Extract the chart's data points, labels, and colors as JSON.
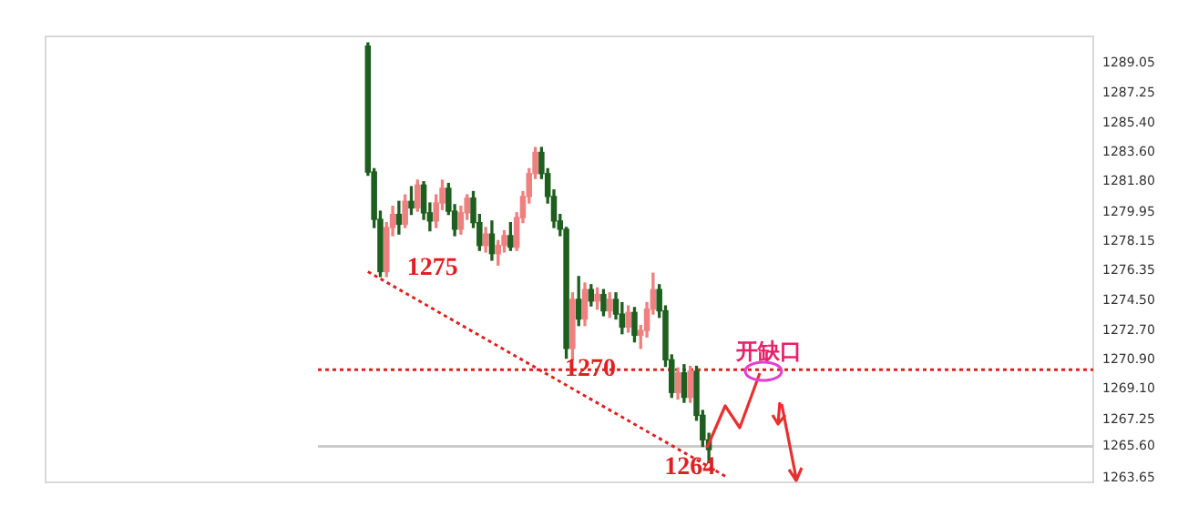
{
  "chart_data": {
    "type": "candlestick",
    "categories": [
      null,
      null,
      null,
      null,
      null,
      null,
      null,
      null,
      null,
      null,
      null,
      null,
      null,
      null,
      null,
      null,
      null,
      null,
      null,
      null,
      null,
      null,
      null,
      null,
      null,
      null,
      null,
      null,
      null,
      null,
      null,
      null,
      null,
      null,
      null,
      null,
      null,
      null,
      null,
      null,
      null,
      null,
      null,
      null,
      null,
      null,
      null,
      null,
      null,
      null,
      null,
      null,
      null,
      null,
      null,
      null,
      null,
      null,
      null,
      null,
      null,
      null,
      null,
      null,
      null,
      null,
      null,
      null,
      null,
      null,
      null,
      null,
      null,
      null,
      null,
      null,
      null,
      null,
      null,
      null,
      null,
      null,
      null,
      null,
      null,
      null,
      null,
      null,
      null,
      null,
      null,
      null,
      null,
      null,
      null,
      null,
      null,
      null,
      null,
      null,
      null,
      null,
      null,
      null,
      null,
      null,
      null,
      null,
      null,
      null,
      null,
      null,
      null,
      null,
      null,
      null,
      null,
      null,
      null,
      null,
      null,
      null,
      null,
      null,
      null,
      null,
      null,
      null,
      null,
      null,
      null,
      null,
      null,
      null,
      null,
      null,
      null,
      null,
      null,
      null,
      null,
      null,
      null,
      null,
      null,
      null,
      null,
      null,
      null,
      null,
      null,
      null,
      null,
      null,
      null,
      null,
      null,
      null,
      null,
      null,
      null,
      null,
      null,
      null,
      null,
      null,
      null,
      null,
      null,
      null
    ],
    "ohlc": [
      null,
      null,
      null,
      null,
      null,
      null,
      null,
      null,
      null,
      null,
      null,
      null,
      null,
      null,
      null,
      null,
      null,
      null,
      null,
      null,
      null,
      null,
      null,
      null,
      null,
      null,
      null,
      null,
      null,
      null,
      null,
      null,
      null,
      null,
      null,
      null,
      null,
      null,
      null,
      null,
      null,
      null,
      null,
      null,
      null,
      null,
      null,
      null,
      null,
      null,
      null,
      null,
      [
        1290.1,
        1290.3,
        1282.2,
        1282.4
      ],
      [
        1282.4,
        1282.6,
        1279.0,
        1279.5
      ],
      [
        1279.5,
        1280.0,
        1276.0,
        1276.3
      ],
      [
        1276.3,
        1279.3,
        1276.0,
        1279.0
      ],
      [
        1279.0,
        1280.3,
        1278.5,
        1279.8
      ],
      [
        1279.8,
        1280.6,
        1278.6,
        1279.2
      ],
      [
        1279.2,
        1281.0,
        1279.0,
        1280.6
      ],
      [
        1280.6,
        1281.5,
        1279.8,
        1280.2
      ],
      [
        1280.2,
        1281.9,
        1280.0,
        1281.6
      ],
      [
        1281.6,
        1281.8,
        1279.5,
        1279.9
      ],
      [
        1279.9,
        1280.5,
        1278.8,
        1279.4
      ],
      [
        1279.4,
        1281.0,
        1279.0,
        1280.5
      ],
      [
        1280.5,
        1281.9,
        1280.1,
        1281.4
      ],
      [
        1281.4,
        1281.7,
        1279.8,
        1280.0
      ],
      [
        1280.0,
        1280.4,
        1278.5,
        1278.9
      ],
      [
        1278.9,
        1280.3,
        1278.6,
        1279.9
      ],
      [
        1279.9,
        1281.0,
        1279.5,
        1280.8
      ],
      [
        1280.8,
        1281.2,
        1279.0,
        1279.3
      ],
      [
        1279.3,
        1279.8,
        1277.6,
        1277.9
      ],
      [
        1277.9,
        1279.0,
        1277.5,
        1278.6
      ],
      [
        1278.6,
        1279.4,
        1277.0,
        1277.4
      ],
      [
        1277.4,
        1278.2,
        1276.7,
        1277.9
      ],
      [
        1277.9,
        1278.8,
        1277.5,
        1278.5
      ],
      [
        1278.5,
        1279.3,
        1277.6,
        1277.8
      ],
      [
        1277.8,
        1279.9,
        1277.6,
        1279.6
      ],
      [
        1279.6,
        1281.2,
        1279.3,
        1280.9
      ],
      [
        1280.9,
        1282.6,
        1280.5,
        1282.3
      ],
      [
        1282.3,
        1283.9,
        1282.0,
        1283.6
      ],
      [
        1283.6,
        1283.9,
        1282.0,
        1282.3
      ],
      [
        1282.3,
        1282.6,
        1280.5,
        1280.9
      ],
      [
        1280.9,
        1281.3,
        1279.0,
        1279.4
      ],
      [
        1279.4,
        1279.8,
        1278.5,
        1278.9
      ],
      [
        1278.9,
        1279.0,
        1271.0,
        1271.6
      ],
      [
        1271.6,
        1275.0,
        1270.9,
        1274.6
      ],
      [
        1274.6,
        1276.0,
        1273.0,
        1273.4
      ],
      [
        1273.4,
        1275.6,
        1273.0,
        1275.2
      ],
      [
        1275.2,
        1275.5,
        1274.2,
        1274.5
      ],
      [
        1274.5,
        1275.3,
        1274.0,
        1274.9
      ],
      [
        1274.9,
        1275.2,
        1273.6,
        1273.9
      ],
      [
        1273.9,
        1275.0,
        1273.5,
        1274.6
      ],
      [
        1274.6,
        1275.0,
        1273.4,
        1273.7
      ],
      [
        1273.7,
        1274.4,
        1272.5,
        1272.9
      ],
      [
        1272.9,
        1274.2,
        1272.6,
        1273.8
      ],
      [
        1273.8,
        1274.1,
        1272.0,
        1272.4
      ],
      [
        1272.4,
        1273.0,
        1271.6,
        1272.7
      ],
      [
        1272.7,
        1274.4,
        1272.3,
        1274.0
      ],
      [
        1274.0,
        1276.2,
        1273.7,
        1275.2
      ],
      [
        1275.2,
        1275.5,
        1273.5,
        1273.9
      ],
      [
        1273.9,
        1274.2,
        1270.5,
        1270.9
      ],
      [
        1270.9,
        1271.2,
        1268.6,
        1268.9
      ],
      [
        1268.9,
        1270.4,
        1268.5,
        1270.1
      ],
      [
        1270.1,
        1270.6,
        1268.3,
        1268.6
      ],
      [
        1268.6,
        1270.5,
        1268.3,
        1270.2
      ],
      [
        1270.2,
        1270.5,
        1267.2,
        1267.5
      ],
      [
        1267.5,
        1267.8,
        1265.6,
        1266.0
      ],
      [
        1266.0,
        1266.4,
        1264.6,
        1265.4
      ],
      null,
      null,
      null,
      null,
      null,
      null,
      null,
      null,
      null,
      null,
      null,
      null,
      null,
      null,
      null,
      null,
      null,
      null,
      null,
      null,
      null,
      null,
      null,
      null,
      null,
      null,
      null,
      null,
      null,
      null,
      null,
      null,
      null,
      null,
      null,
      null,
      null,
      null,
      null,
      null,
      null,
      null,
      null,
      null,
      null,
      null,
      null,
      null,
      null,
      null,
      null,
      null,
      null,
      null,
      null,
      null,
      null,
      null,
      null,
      null,
      null,
      null
    ],
    "colors": [
      null,
      null,
      null,
      null,
      null,
      null,
      null,
      null,
      null,
      null,
      null,
      null,
      null,
      null,
      null,
      null,
      null,
      null,
      null,
      null,
      null,
      null,
      null,
      null,
      null,
      null,
      null,
      null,
      null,
      null,
      null,
      null,
      null,
      null,
      null,
      null,
      null,
      null,
      null,
      null,
      null,
      null,
      null,
      null,
      null,
      null,
      null,
      null,
      null,
      null,
      null,
      null,
      "#1e5e1e",
      "#1e5e1e",
      "#1e5e1e",
      "#ee8080",
      "#ee8080",
      "#1e5e1e",
      "#ee8080",
      "#1e5e1e",
      "#ee8080",
      "#1e5e1e",
      "#1e5e1e",
      "#ee8080",
      "#ee8080",
      "#1e5e1e",
      "#1e5e1e",
      "#ee8080",
      "#ee8080",
      "#1e5e1e",
      "#1e5e1e",
      "#ee8080",
      "#1e5e1e",
      "#ee8080",
      "#ee8080",
      "#1e5e1e",
      "#ee8080",
      "#ee8080",
      "#ee8080",
      "#ee8080",
      "#1e5e1e",
      "#1e5e1e",
      "#1e5e1e",
      "#1e5e1e",
      "#1e5e1e",
      "#ee8080",
      "#1e5e1e",
      "#ee8080",
      "#1e5e1e",
      "#ee8080",
      "#1e5e1e",
      "#ee8080",
      "#1e5e1e",
      "#1e5e1e",
      "#ee8080",
      "#1e5e1e",
      "#ee8080",
      "#ee8080",
      "#ee8080",
      "#1e5e1e",
      "#1e5e1e",
      "#1e5e1e",
      "#ee8080",
      "#1e5e1e",
      "#ee8080",
      "#1e5e1e",
      "#1e5e1e",
      "#1e5e1e",
      null,
      null,
      null,
      null,
      null,
      null,
      null,
      null,
      null,
      null,
      null,
      null,
      null,
      null,
      null,
      null,
      null,
      null,
      null,
      null,
      null,
      null,
      null,
      null,
      null,
      null,
      null,
      null,
      null,
      null,
      null,
      null,
      null,
      null,
      null,
      null,
      null,
      null,
      null,
      null,
      null,
      null,
      null,
      null,
      null,
      null,
      null,
      null,
      null,
      null,
      null,
      null,
      null,
      null,
      null,
      null,
      null,
      null,
      null,
      null,
      null,
      null
    ],
    "series": [
      {
        "type": "line",
        "color": "#e02020",
        "line_style": "dotted",
        "values": [
          null,
          null,
          null,
          null,
          null,
          null,
          null,
          null,
          null,
          null,
          null,
          null,
          null,
          null,
          null,
          null,
          null,
          null,
          null,
          null,
          null,
          null,
          null,
          null,
          null,
          null,
          null,
          null,
          null,
          null,
          null,
          null,
          null,
          null,
          null,
          null,
          null,
          null,
          null,
          null,
          null,
          null,
          null,
          null,
          null,
          null,
          null,
          null,
          null,
          null,
          null,
          null,
          1276.3,
          null,
          null,
          null,
          null,
          null,
          null,
          null,
          null,
          null,
          null,
          null,
          null,
          null,
          null,
          null,
          null,
          null,
          null,
          null,
          null,
          null,
          null,
          null,
          null,
          null,
          null,
          null,
          null,
          null,
          null,
          null,
          null,
          null,
          null,
          null,
          null,
          null,
          null,
          null,
          null,
          null,
          null,
          null,
          null,
          null,
          null,
          null,
          null,
          null,
          null,
          null,
          null,
          null,
          null,
          null,
          null,
          null,
          1263.7,
          null,
          null,
          null,
          null,
          null,
          null,
          null,
          null,
          null,
          null,
          null,
          null,
          null,
          null,
          null,
          null,
          null,
          null,
          null,
          null,
          null,
          null,
          null,
          null,
          null,
          null,
          null,
          null,
          null,
          null,
          null,
          null,
          null,
          null,
          null,
          null,
          null,
          null,
          null,
          null,
          null,
          null,
          null,
          null,
          null,
          null,
          null,
          null,
          null,
          null,
          null,
          null,
          null,
          null,
          null,
          null,
          null,
          null,
          null
        ]
      }
    ],
    "ylim": [
      1263.4,
      1290.7
    ],
    "yticks": [
      1289.05,
      1287.25,
      {
        "value": 1285.4,
        "label": "1285.40"
      },
      {
        "value": 1283.6,
        "label": "1283.60"
      },
      {
        "value": 1281.8,
        "label": "1281.80"
      },
      1279.95,
      1278.15,
      1276.35,
      {
        "value": 1274.5,
        "label": "1274.50"
      },
      {
        "value": 1272.7,
        "label": "1272.70"
      },
      {
        "value": 1270.9,
        "label": "1270.90"
      },
      {
        "value": 1269.1,
        "label": "1269.10"
      },
      1267.25,
      {
        "value": 1265.6,
        "label": "1265.60"
      },
      1263.65
    ],
    "ref_lines": [
      {
        "axis": "y",
        "value": 1270.3,
        "label": "1270",
        "color": "#e02020",
        "line_style": "dotted"
      },
      {
        "axis": "y",
        "value": 1265.6,
        "color": "#cccccc",
        "line_style": "solid"
      }
    ],
    "annotations": [
      "1275",
      {
        "text": "1264",
        "y": 1264.3
      },
      "开缺口"
    ],
    "tick_labels": "y",
    "grid": false
  }
}
